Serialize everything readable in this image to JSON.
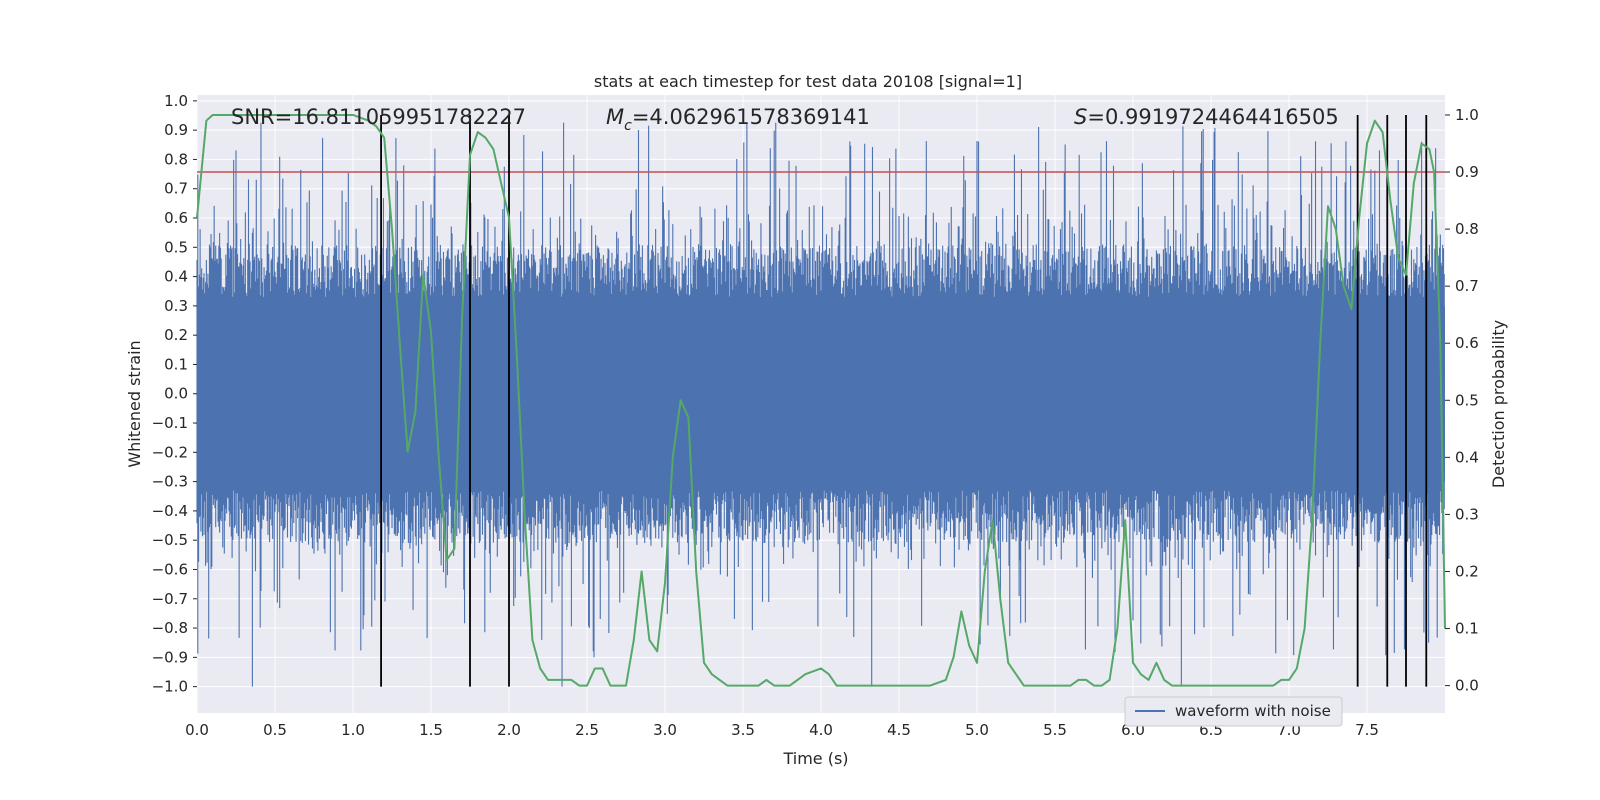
{
  "chart_data": {
    "type": "line",
    "title": "stats at each timestep for test data 20108 [signal=1]",
    "xlabel": "Time (s)",
    "ylabel": "Whitened strain",
    "y2label": "Detection probability",
    "xlim": [
      0.0,
      8.0
    ],
    "ylim": [
      -1.09,
      1.02
    ],
    "y2lim": [
      -0.048,
      1.035
    ],
    "xticks": [
      "0.0",
      "0.5",
      "1.0",
      "1.5",
      "2.0",
      "2.5",
      "3.0",
      "3.5",
      "4.0",
      "4.5",
      "5.0",
      "5.5",
      "6.0",
      "6.5",
      "7.0",
      "7.5"
    ],
    "yticks": [
      "1.0",
      "0.9",
      "0.8",
      "0.7",
      "0.6",
      "0.5",
      "0.4",
      "0.3",
      "0.2",
      "0.1",
      "0.0",
      "−0.1",
      "−0.2",
      "−0.3",
      "−0.4",
      "−0.5",
      "−0.6",
      "−0.7",
      "−0.8",
      "−0.9",
      "−1.0"
    ],
    "y2ticks": [
      "1.0",
      "0.9",
      "0.8",
      "0.7",
      "0.6",
      "0.5",
      "0.4",
      "0.3",
      "0.2",
      "0.1",
      "0.0"
    ],
    "annotations": {
      "snr_label": "SNR=16.811059951782227",
      "mc_symbol": "M",
      "mc_sub": "c",
      "mc_value": "=4.062961578369141",
      "s_symbol": "S",
      "s_value": "=0.9919724464416505"
    },
    "threshold": {
      "y2": 0.9,
      "color": "#c44e52"
    },
    "vertical_lines": {
      "x": [
        1.18,
        1.75,
        2.0,
        7.44,
        7.63,
        7.75,
        7.88
      ],
      "y2_top": 1.0,
      "color": "#000000"
    },
    "series": [
      {
        "name": "waveform with noise",
        "color": "#4c72b0",
        "axis": "left",
        "samples": 1600,
        "band": 0.33,
        "spike_max": 0.93,
        "trough_min": -1.0
      },
      {
        "name": "detection probability",
        "color": "#55a868",
        "axis": "right",
        "x": [
          0.0,
          0.06,
          0.1,
          0.2,
          0.4,
          0.7,
          1.0,
          1.1,
          1.15,
          1.2,
          1.25,
          1.3,
          1.35,
          1.4,
          1.45,
          1.5,
          1.55,
          1.6,
          1.65,
          1.7,
          1.75,
          1.8,
          1.85,
          1.9,
          1.95,
          2.0,
          2.05,
          2.1,
          2.15,
          2.2,
          2.25,
          2.3,
          2.35,
          2.4,
          2.45,
          2.5,
          2.55,
          2.6,
          2.65,
          2.7,
          2.75,
          2.8,
          2.85,
          2.9,
          2.95,
          3.0,
          3.05,
          3.1,
          3.15,
          3.2,
          3.25,
          3.3,
          3.35,
          3.4,
          3.45,
          3.5,
          3.55,
          3.6,
          3.65,
          3.7,
          3.8,
          3.9,
          4.0,
          4.05,
          4.1,
          4.15,
          4.2,
          4.25,
          4.3,
          4.35,
          4.4,
          4.5,
          4.6,
          4.7,
          4.8,
          4.85,
          4.9,
          4.95,
          5.0,
          5.05,
          5.1,
          5.15,
          5.2,
          5.25,
          5.3,
          5.35,
          5.4,
          5.5,
          5.6,
          5.65,
          5.7,
          5.75,
          5.8,
          5.85,
          5.9,
          5.95,
          6.0,
          6.05,
          6.1,
          6.15,
          6.2,
          6.25,
          6.3,
          6.5,
          6.7,
          6.9,
          6.95,
          7.0,
          7.05,
          7.1,
          7.15,
          7.2,
          7.25,
          7.3,
          7.35,
          7.4,
          7.45,
          7.5,
          7.55,
          7.6,
          7.65,
          7.7,
          7.75,
          7.8,
          7.85,
          7.9,
          7.93,
          7.97,
          8.0
        ],
        "y2": [
          0.82,
          0.99,
          1.0,
          1.0,
          1.0,
          1.0,
          1.0,
          0.99,
          0.98,
          0.96,
          0.8,
          0.6,
          0.41,
          0.48,
          0.72,
          0.62,
          0.4,
          0.22,
          0.24,
          0.65,
          0.93,
          0.97,
          0.96,
          0.94,
          0.88,
          0.82,
          0.58,
          0.3,
          0.08,
          0.03,
          0.01,
          0.01,
          0.01,
          0.01,
          0.0,
          0.0,
          0.03,
          0.03,
          0.0,
          0.0,
          0.0,
          0.08,
          0.2,
          0.08,
          0.06,
          0.18,
          0.4,
          0.5,
          0.47,
          0.2,
          0.04,
          0.02,
          0.01,
          0.0,
          0.0,
          0.0,
          0.0,
          0.0,
          0.01,
          0.0,
          0.0,
          0.02,
          0.03,
          0.02,
          0.0,
          0.0,
          0.0,
          0.0,
          0.0,
          0.0,
          0.0,
          0.0,
          0.0,
          0.0,
          0.01,
          0.05,
          0.13,
          0.07,
          0.04,
          0.2,
          0.29,
          0.15,
          0.04,
          0.02,
          0.0,
          0.0,
          0.0,
          0.0,
          0.0,
          0.01,
          0.01,
          0.0,
          0.0,
          0.01,
          0.1,
          0.29,
          0.04,
          0.02,
          0.01,
          0.04,
          0.01,
          0.0,
          0.0,
          0.0,
          0.0,
          0.0,
          0.01,
          0.01,
          0.03,
          0.1,
          0.3,
          0.6,
          0.84,
          0.8,
          0.7,
          0.66,
          0.82,
          0.95,
          0.99,
          0.97,
          0.85,
          0.75,
          0.72,
          0.88,
          0.95,
          0.94,
          0.9,
          0.6,
          0.1
        ]
      }
    ],
    "legend": {
      "label": "waveform with noise",
      "placement": "lower-right"
    }
  }
}
